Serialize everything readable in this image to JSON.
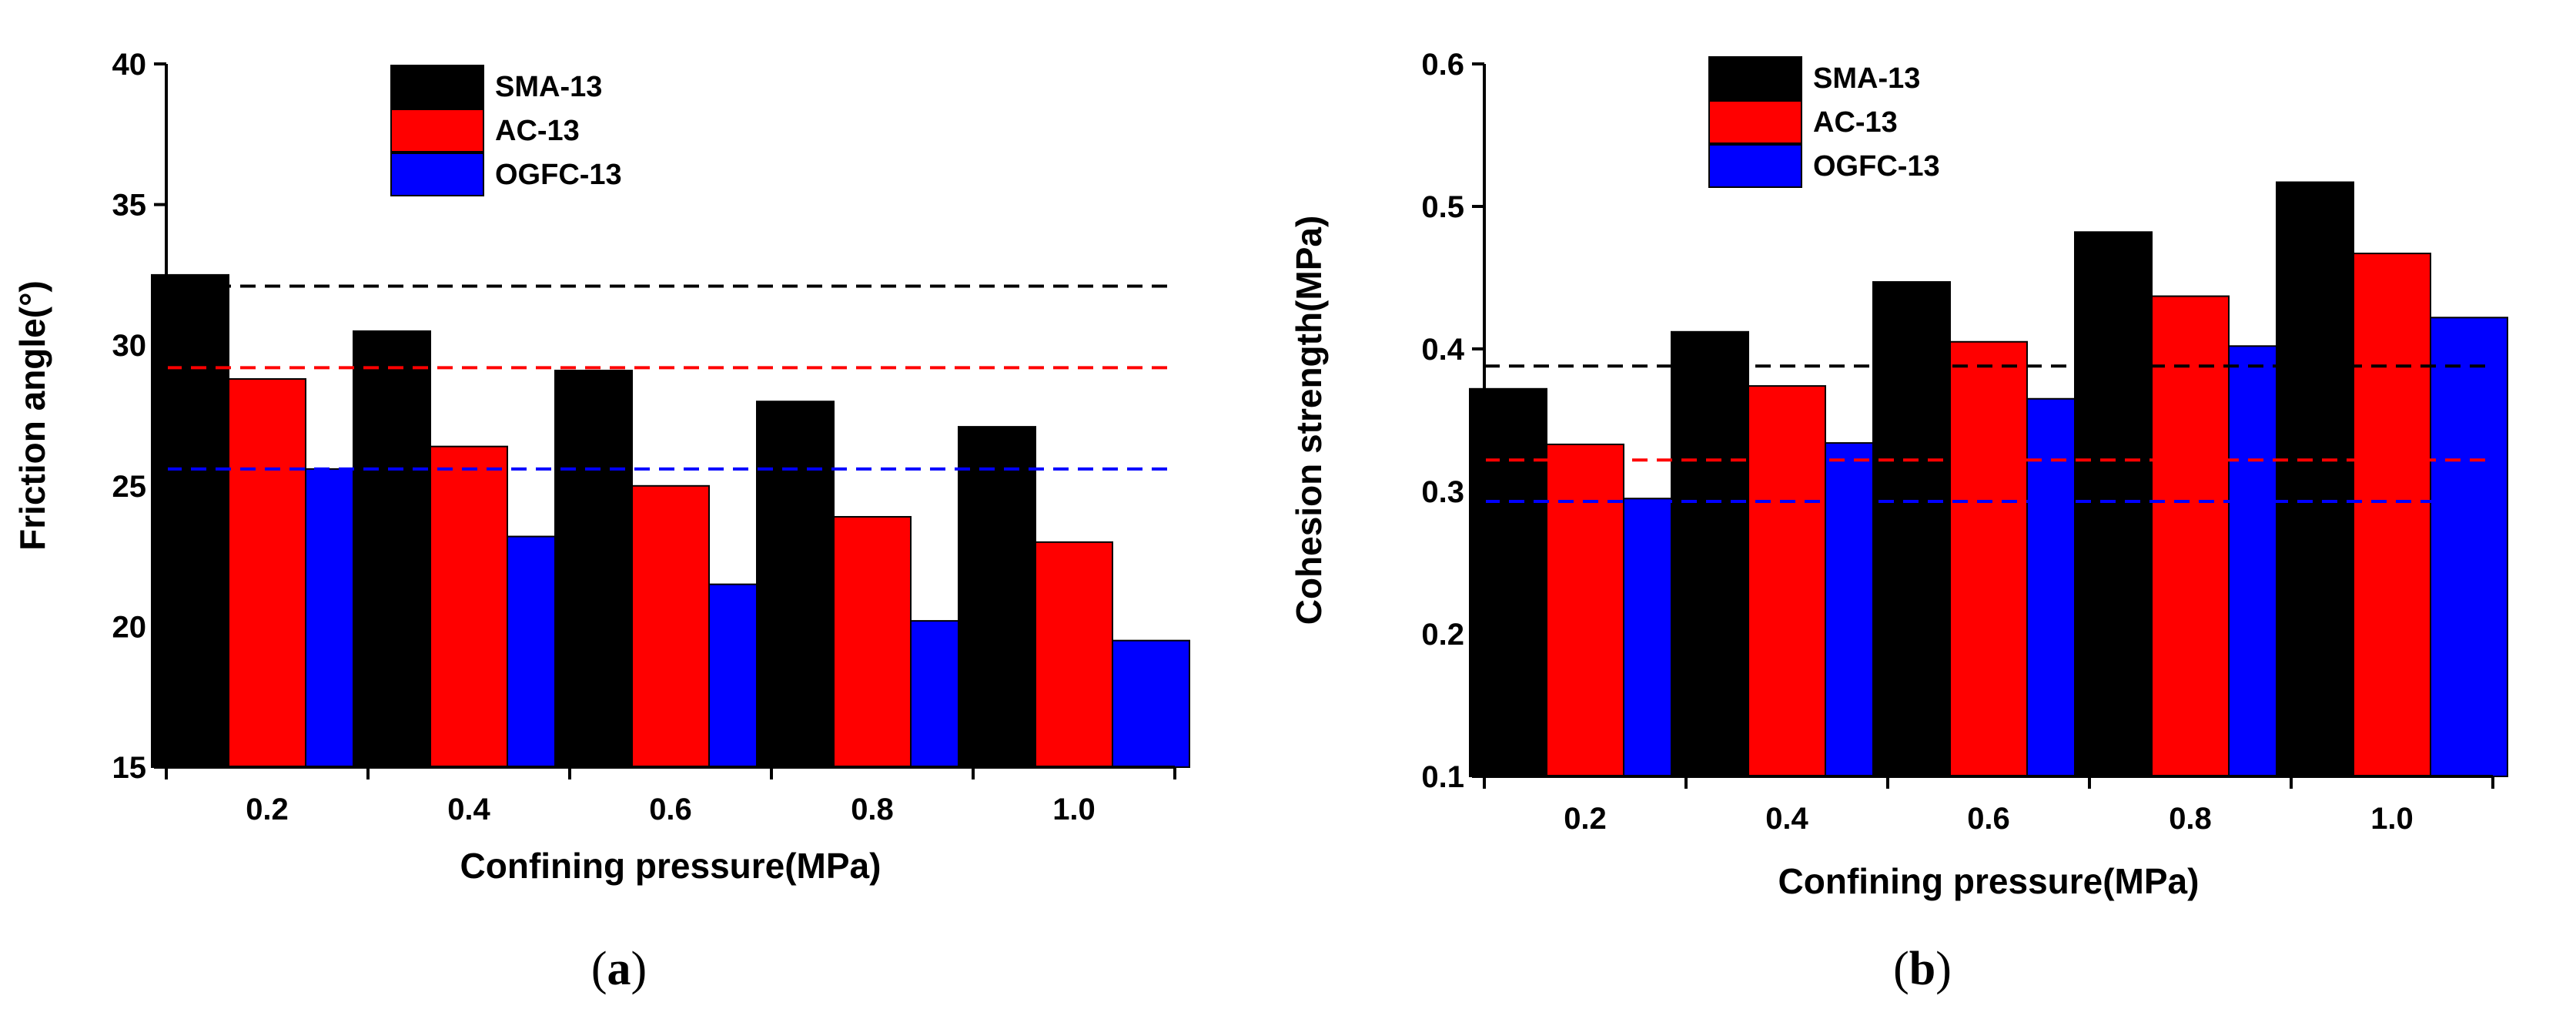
{
  "chart_data": [
    {
      "type": "bar",
      "panel": "a",
      "categories": [
        "0.2",
        "0.4",
        "0.6",
        "0.8",
        "1.0"
      ],
      "series": [
        {
          "name": "SMA-13",
          "color": "#000000",
          "values": [
            32.5,
            30.5,
            29.1,
            28.0,
            27.1
          ]
        },
        {
          "name": "AC-13",
          "color": "#ff0000",
          "values": [
            28.8,
            26.4,
            25.0,
            23.9,
            23.0
          ]
        },
        {
          "name": "OGFC-13",
          "color": "#0000ff",
          "values": [
            25.6,
            23.2,
            21.5,
            20.2,
            19.5
          ]
        }
      ],
      "reference_lines": [
        {
          "series": "SMA-13",
          "color": "#000000",
          "value": 32.1
        },
        {
          "series": "AC-13",
          "color": "#ff0000",
          "value": 29.2
        },
        {
          "series": "OGFC-13",
          "color": "#0000ff",
          "value": 25.6
        }
      ],
      "xlabel": "Confining pressure(MPa)",
      "ylabel": "Friction angle(°)",
      "ylim": [
        15,
        40
      ],
      "yticks": [
        "15",
        "20",
        "25",
        "30",
        "35",
        "40"
      ],
      "grid": false,
      "legend": "top"
    },
    {
      "type": "bar",
      "panel": "b",
      "categories": [
        "0.2",
        "0.4",
        "0.6",
        "0.8",
        "1.0"
      ],
      "series": [
        {
          "name": "SMA-13",
          "color": "#000000",
          "values": [
            0.372,
            0.412,
            0.447,
            0.482,
            0.517
          ]
        },
        {
          "name": "AC-13",
          "color": "#ff0000",
          "values": [
            0.333,
            0.374,
            0.405,
            0.437,
            0.467
          ]
        },
        {
          "name": "OGFC-13",
          "color": "#0000ff",
          "values": [
            0.295,
            0.334,
            0.365,
            0.402,
            0.422
          ]
        }
      ],
      "reference_lines": [
        {
          "series": "SMA-13",
          "color": "#000000",
          "value": 0.388
        },
        {
          "series": "AC-13",
          "color": "#ff0000",
          "value": 0.322
        },
        {
          "series": "OGFC-13",
          "color": "#0000ff",
          "value": 0.293
        }
      ],
      "xlabel": "Confining pressure(MPa)",
      "ylabel": "Cohesion strength(MPa)",
      "ylim": [
        0.1,
        0.6
      ],
      "yticks": [
        "0.1",
        "0.2",
        "0.3",
        "0.4",
        "0.5",
        "0.6"
      ],
      "grid": false,
      "legend": "top-left"
    }
  ],
  "captions": [
    {
      "open": "(",
      "letter": "a",
      "close": ")"
    },
    {
      "open": "(",
      "letter": "b",
      "close": ")"
    }
  ]
}
